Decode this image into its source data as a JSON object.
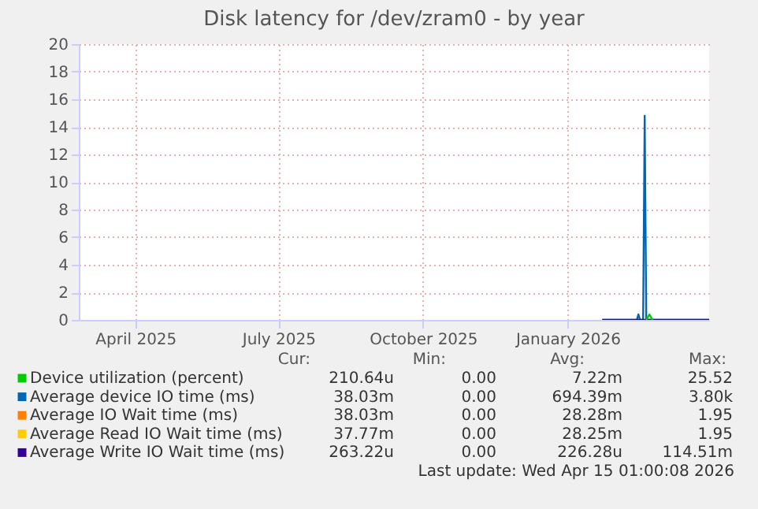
{
  "chart_data": {
    "type": "line",
    "title": "Disk latency for /dev/zram0 - by year",
    "x": [
      "2026-02-06",
      "2026-02-20",
      "2026-02-28",
      "2026-03-01",
      "2026-03-02",
      "2026-03-04",
      "2026-03-05",
      "2026-03-06",
      "2026-03-20",
      "2026-04-15"
    ],
    "series": [
      {
        "name": "Device utilization (percent)",
        "color": "#00cc00",
        "x": [
          "2026-03-06",
          "2026-03-08",
          "2026-03-10"
        ],
        "values": [
          0,
          0.4,
          0
        ]
      },
      {
        "name": "Average device IO time (ms)",
        "color": "#0066b3",
        "values": [
          0,
          0,
          0,
          0.4,
          0,
          0,
          14.8,
          0,
          0,
          0
        ]
      },
      {
        "name": "Average IO Wait time (ms)",
        "color": "#ff8000",
        "values": [
          null,
          null,
          null,
          null,
          null,
          null,
          null,
          null,
          null,
          null
        ]
      },
      {
        "name": "Average Read IO Wait time (ms)",
        "color": "#ffcc00",
        "values": [
          null,
          null,
          null,
          null,
          null,
          null,
          null,
          null,
          null,
          null
        ]
      },
      {
        "name": "Average Write IO Wait time (ms)",
        "color": "#330099",
        "values": [
          0,
          0,
          0,
          0,
          0,
          0,
          0,
          0,
          0,
          0
        ]
      }
    ],
    "xlim": [
      "2025-03-10",
      "2026-04-15"
    ],
    "xticks": [
      {
        "value": "2025-04-15",
        "label": "April 2025"
      },
      {
        "value": "2025-07-15",
        "label": "July 2025"
      },
      {
        "value": "2025-10-15",
        "label": "October 2025"
      },
      {
        "value": "2026-01-15",
        "label": "January 2026"
      }
    ],
    "ylim": [
      0,
      20
    ],
    "yticks": [
      0,
      2,
      4,
      6,
      8,
      10,
      12,
      14,
      16,
      18,
      20
    ],
    "grid": true,
    "legend": "bottom",
    "marker": "none",
    "line_style": "solid",
    "annotations": [
      "Cur:",
      "Min:",
      "Avg:",
      "Max:",
      "210.64u",
      "0.00",
      "7.22m",
      "25.52",
      "38.03m",
      "0.00",
      "694.39m",
      "3.80k",
      "38.03m",
      "0.00",
      "28.28m",
      "1.95",
      "37.77m",
      "0.00",
      "28.25m",
      "1.95",
      "263.22u",
      "0.00",
      "226.28u",
      "114.51m",
      "Last update: Wed Apr 15 01:00:08 2026"
    ]
  }
}
